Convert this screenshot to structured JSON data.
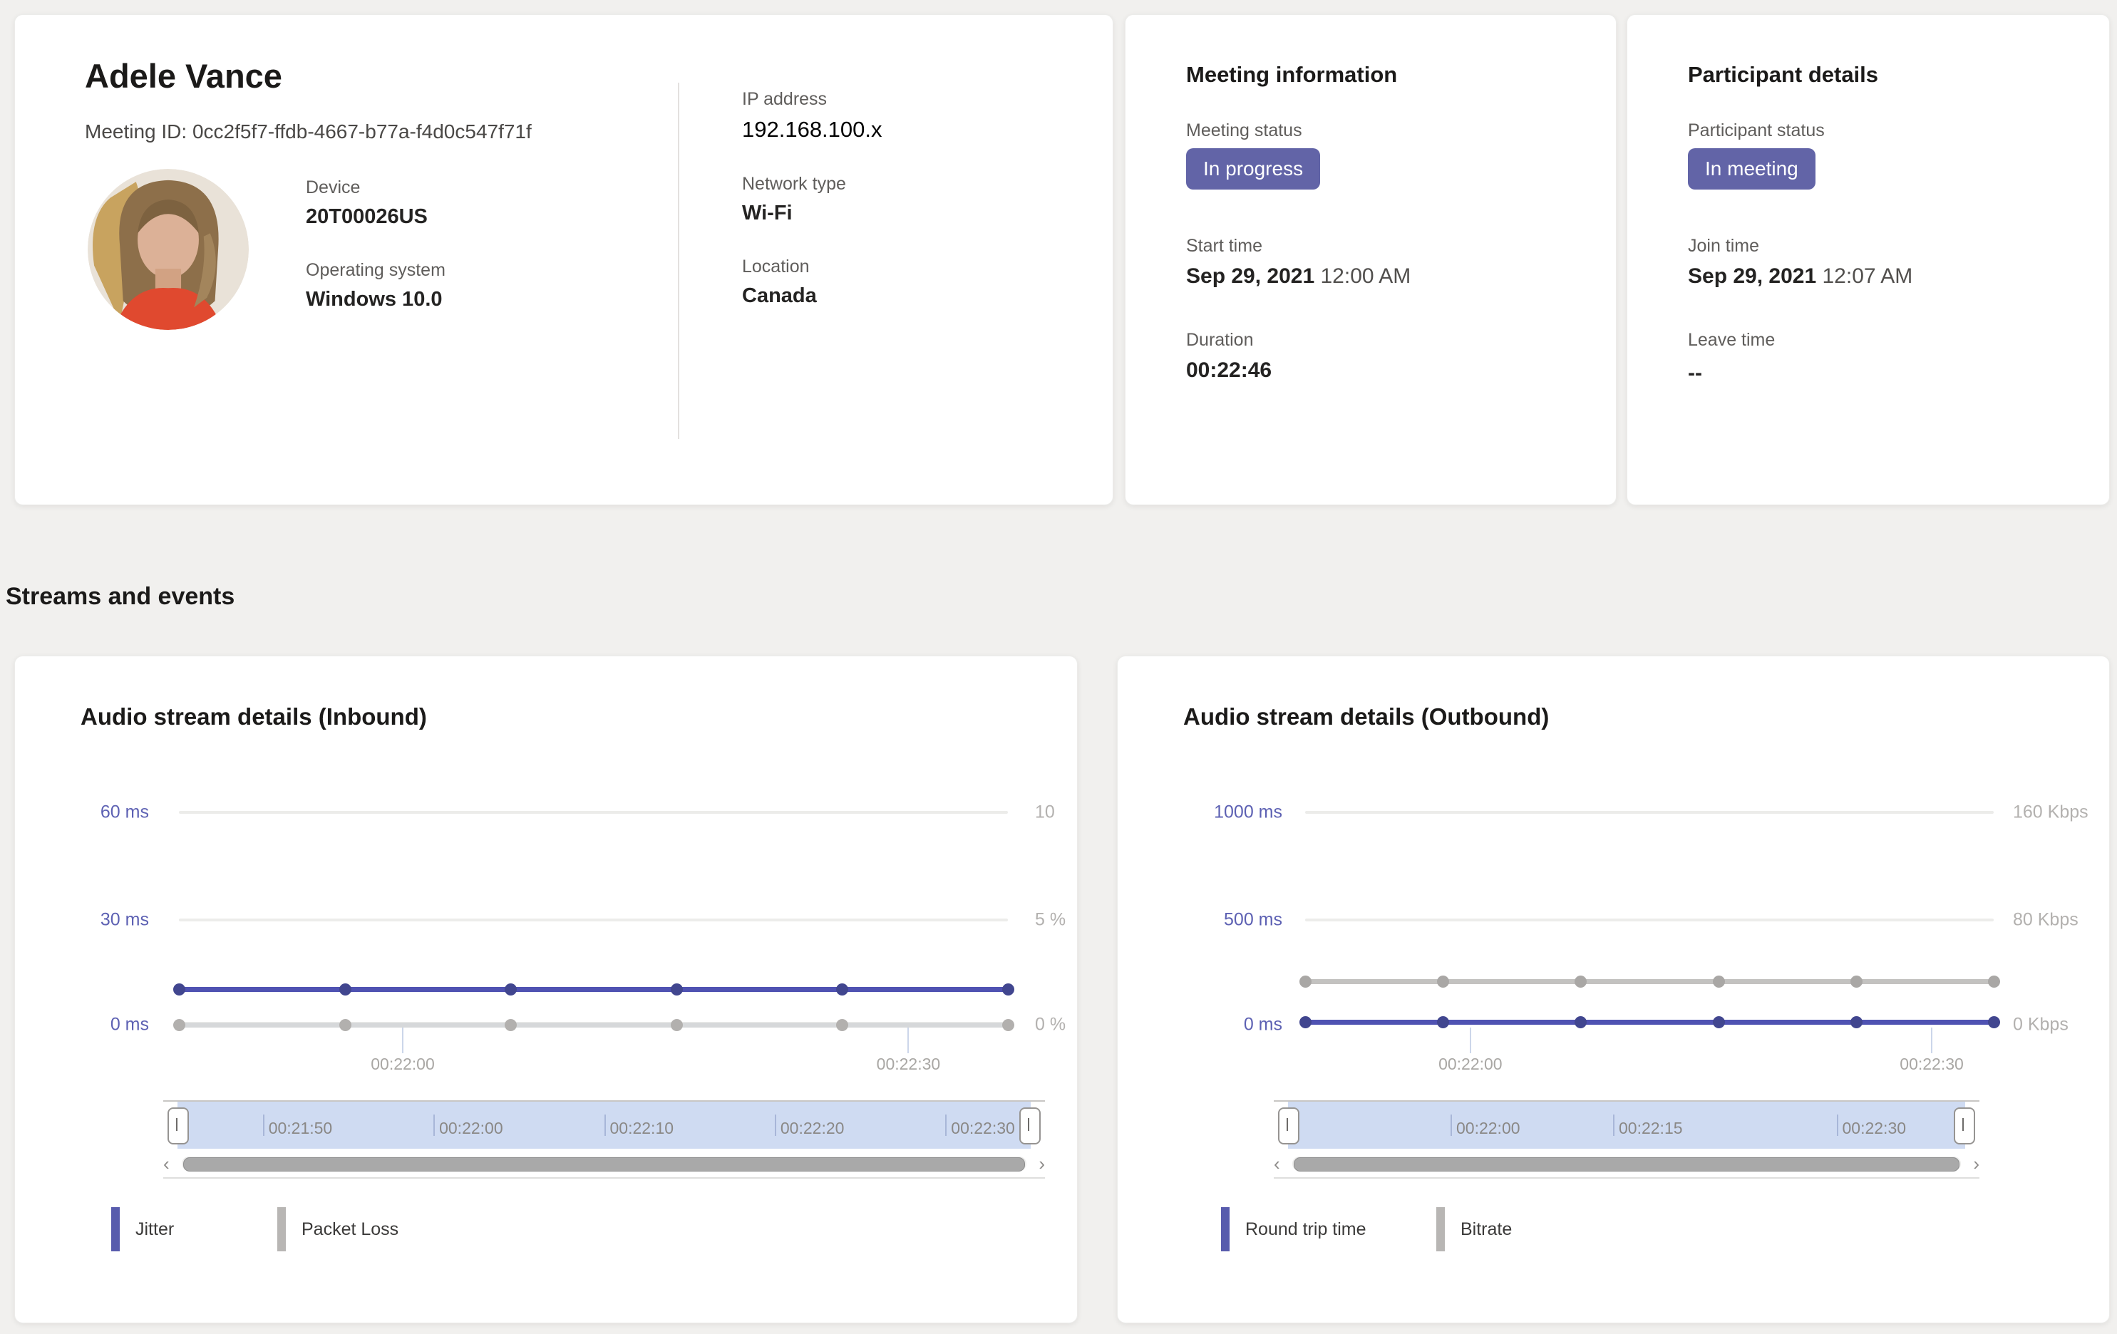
{
  "colors": {
    "page_background": "#f1f0ee",
    "card_background": "#ffffff",
    "badge_purple": "#6264a7",
    "chart_purple": "#4f52b2",
    "chart_gray": "#c9c8c6",
    "axis_label_purple": "#5d61b3",
    "slider_band_blue": "#cfdbf2"
  },
  "user_card": {
    "name": "Adele Vance",
    "meeting_id_line": "Meeting ID: 0cc2f5f7-ffdb-4667-b77a-f4d0c547f71f",
    "device_label": "Device",
    "device_value": "20T00026US",
    "os_label": "Operating system",
    "os_value": "Windows 10.0",
    "ip_label": "IP address",
    "ip_value": "192.168.100.x",
    "network_label": "Network type",
    "network_value": "Wi-Fi",
    "location_label": "Location",
    "location_value": "Canada"
  },
  "meeting_card": {
    "title": "Meeting information",
    "status_label": "Meeting status",
    "status_value": "In progress",
    "start_label": "Start time",
    "start_date": "Sep 29, 2021",
    "start_time": "12:00 AM",
    "duration_label": "Duration",
    "duration_value": "00:22:46"
  },
  "participant_card": {
    "title": "Participant details",
    "status_label": "Participant status",
    "status_value": "In meeting",
    "join_label": "Join time",
    "join_date": "Sep 29, 2021",
    "join_time": "12:07 AM",
    "leave_label": "Leave time",
    "leave_value": "--"
  },
  "section_title": "Streams and events",
  "chart_data": [
    {
      "dom_id": "chart-inbound",
      "type": "line",
      "title": "Audio stream details (Inbound)",
      "left_axis": {
        "unit": "ms",
        "max": 60,
        "labels_top_to_bottom": [
          "60 ms",
          "30 ms",
          "0 ms"
        ]
      },
      "right_axis": {
        "unit": "%",
        "max": 10,
        "labels_top_to_bottom": [
          "10",
          "5 %",
          "0 %"
        ]
      },
      "x_ticks": [
        {
          "label": "00:22:00",
          "pos_pct": 27
        },
        {
          "label": "00:22:30",
          "pos_pct": 88
        }
      ],
      "series": [
        {
          "name": "Jitter",
          "axis": "left",
          "unit": "ms",
          "color": "#4f52b2",
          "dot_color": "#41468f",
          "values": [
            10,
            10,
            10,
            10,
            10,
            10
          ]
        },
        {
          "name": "Packet Loss",
          "axis": "right",
          "unit": "%",
          "color": "#d6d8da",
          "dot_color": "#b2b0ae",
          "values": [
            0,
            0,
            0,
            0,
            0,
            0
          ]
        }
      ],
      "range_slider": {
        "ticks": [
          {
            "label": "00:21:50",
            "pos_pct": 10
          },
          {
            "label": "00:22:00",
            "pos_pct": 30
          },
          {
            "label": "00:22:10",
            "pos_pct": 50
          },
          {
            "label": "00:22:20",
            "pos_pct": 70
          },
          {
            "label": "00:22:30",
            "pos_pct": 90
          }
        ]
      }
    },
    {
      "dom_id": "chart-outbound",
      "type": "line",
      "title": "Audio stream details (Outbound)",
      "left_axis": {
        "unit": "ms",
        "max": 1000,
        "labels_top_to_bottom": [
          "1000 ms",
          "500 ms",
          "0 ms"
        ]
      },
      "right_axis": {
        "unit": "Kbps",
        "max": 160,
        "labels_top_to_bottom": [
          "160 Kbps",
          "80 Kbps",
          "0 Kbps"
        ]
      },
      "x_ticks": [
        {
          "label": "00:22:00",
          "pos_pct": 24
        },
        {
          "label": "00:22:30",
          "pos_pct": 91
        }
      ],
      "series": [
        {
          "name": "Round trip time",
          "axis": "left",
          "unit": "ms",
          "color": "#4f52b2",
          "dot_color": "#41468f",
          "values": [
            15,
            15,
            15,
            15,
            15,
            15
          ]
        },
        {
          "name": "Bitrate",
          "axis": "right",
          "unit": "Kbps",
          "color": "#c3c2c0",
          "dot_color": "#a9a7a5",
          "values": [
            33,
            33,
            33,
            33,
            33,
            33
          ]
        }
      ],
      "range_slider": {
        "ticks": [
          {
            "label": "00:22:00",
            "pos_pct": 24
          },
          {
            "label": "00:22:15",
            "pos_pct": 48
          },
          {
            "label": "00:22:30",
            "pos_pct": 81
          }
        ]
      }
    }
  ],
  "icons": {
    "scroll_left": "‹",
    "scroll_right": "›"
  }
}
